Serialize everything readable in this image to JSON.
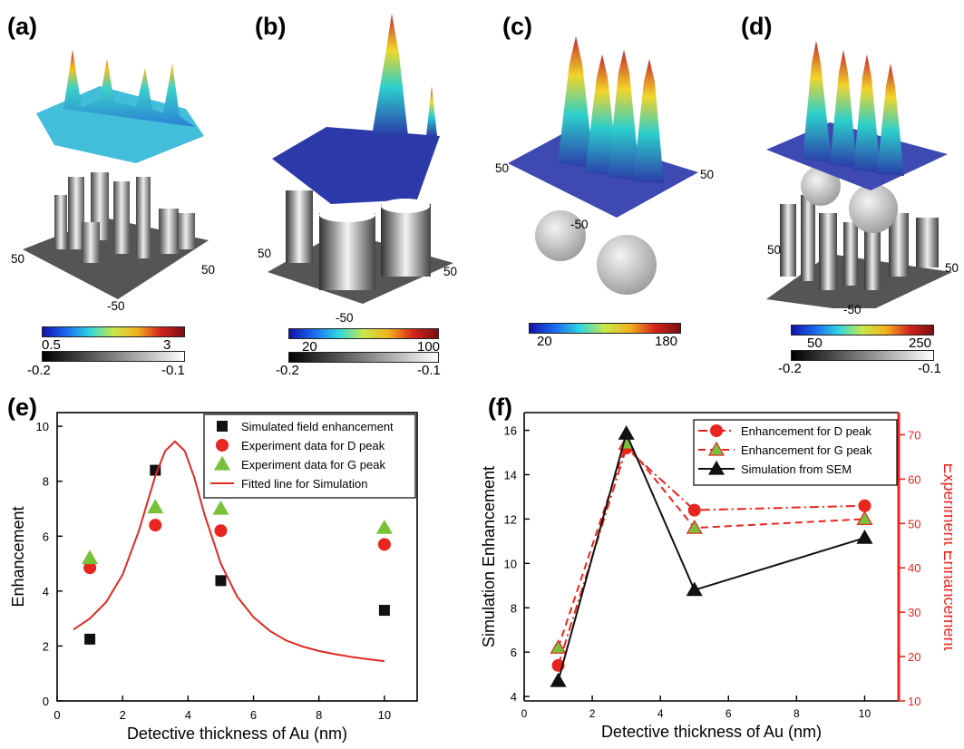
{
  "panels": {
    "a": {
      "label": "(a)",
      "color_min": "0.5",
      "color_max": "3",
      "gray_min": "-0.2",
      "gray_max": "-0.1",
      "ax_left": "50",
      "ax_right": "50",
      "ax_bottom": "-50"
    },
    "b": {
      "label": "(b)",
      "color_min": "20",
      "color_max": "100",
      "gray_min": "-0.2",
      "gray_max": "-0.1",
      "ax_left": "50",
      "ax_right": "50",
      "ax_bottom": "-50"
    },
    "c": {
      "label": "(c)",
      "color_min": "20",
      "color_max": "180",
      "ax_left": "50",
      "ax_right": "50",
      "ax_bottom": "-50"
    },
    "d": {
      "label": "(d)",
      "color_min": "50",
      "color_max": "250",
      "gray_min": "-0.2",
      "gray_max": "-0.1",
      "ax_left": "50",
      "ax_right": "50",
      "ax_bottom": "-50"
    },
    "e": {
      "label": "(e)"
    },
    "f": {
      "label": "(f)"
    }
  },
  "colors": {
    "black_series": "#111111",
    "red_series": "#e8251f",
    "green_series": "#78c13a",
    "fit_line": "#e02a22",
    "right_axis": "#e8251f",
    "surface_blue": "#2b3aa8"
  },
  "chart_data": [
    {
      "type": "scatter",
      "panel": "(e)",
      "xlabel": "Detective thickness of Au (nm)",
      "ylabel": "Enhancement",
      "xlim": [
        0,
        11
      ],
      "ylim": [
        0,
        10.5
      ],
      "xticks": [
        "0",
        "2",
        "4",
        "6",
        "8",
        "10"
      ],
      "yticks": [
        "0",
        "2",
        "4",
        "6",
        "8",
        "10"
      ],
      "legend_position": "top-right",
      "series": [
        {
          "name": "Simulated field enhancement",
          "marker": "square",
          "color": "#111111",
          "x": [
            1,
            3,
            5,
            10
          ],
          "y": [
            2.25,
            8.4,
            4.38,
            3.3
          ]
        },
        {
          "name": "Experiment data for D peak",
          "marker": "circle",
          "color": "#e8251f",
          "x": [
            1,
            3,
            5,
            10
          ],
          "y": [
            4.85,
            6.4,
            6.2,
            5.7
          ]
        },
        {
          "name": "Experiment data for G peak",
          "marker": "triangle",
          "color": "#78c13a",
          "x": [
            1,
            3,
            5,
            10
          ],
          "y": [
            5.2,
            7.05,
            7.0,
            6.3
          ]
        },
        {
          "name": "Fitted line for Simulation",
          "marker": "line",
          "color": "#e02a22",
          "x": [
            0.5,
            1,
            1.5,
            2,
            2.5,
            3,
            3.3,
            3.6,
            3.9,
            4.2,
            4.5,
            5,
            5.5,
            6,
            6.5,
            7,
            7.5,
            8,
            8.5,
            9,
            9.5,
            10
          ],
          "y": [
            2.6,
            3.0,
            3.6,
            4.6,
            6.2,
            8.2,
            9.1,
            9.45,
            9.1,
            8.1,
            6.8,
            5.0,
            3.8,
            3.05,
            2.55,
            2.2,
            1.98,
            1.82,
            1.7,
            1.6,
            1.52,
            1.45
          ]
        }
      ]
    },
    {
      "type": "line",
      "panel": "(f)",
      "xlabel": "Detective thickness of Au (nm)",
      "ylabel": "Simulation Enhancement",
      "ylabel_right": "Experiment Enhancement",
      "xlim": [
        0,
        11
      ],
      "ylim": [
        3.8,
        16.8
      ],
      "ylim_right": [
        10,
        75
      ],
      "xticks": [
        "0",
        "2",
        "4",
        "6",
        "8",
        "10"
      ],
      "yticks": [
        "4",
        "6",
        "8",
        "10",
        "12",
        "14",
        "16"
      ],
      "yticks_right": [
        "10",
        "20",
        "30",
        "40",
        "50",
        "60",
        "70"
      ],
      "legend_position": "top-right",
      "series": [
        {
          "name": "Enhancement for D peak",
          "axis": "right",
          "marker": "circle",
          "dash": "dashdot",
          "color": "#e8251f",
          "x": [
            1,
            3,
            5,
            10
          ],
          "y": [
            18,
            67,
            53,
            54
          ]
        },
        {
          "name": "Enhancement for G peak",
          "axis": "right",
          "marker": "triangle",
          "dash": "dash",
          "color": "#e8251f",
          "fill": "#78c13a",
          "x": [
            1,
            3,
            5,
            10
          ],
          "y": [
            22,
            68,
            49,
            51
          ]
        },
        {
          "name": "Simulation from SEM",
          "axis": "left",
          "marker": "triangle",
          "dash": "solid",
          "color": "#111111",
          "x": [
            1,
            3,
            5,
            10
          ],
          "y": [
            4.7,
            15.85,
            8.8,
            11.15
          ]
        }
      ]
    }
  ]
}
